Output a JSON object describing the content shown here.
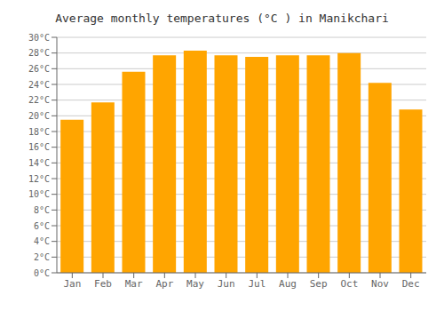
{
  "chart_data": {
    "type": "bar",
    "title": "Average monthly temperatures (°C ) in Manikchari",
    "categories": [
      "Jan",
      "Feb",
      "Mar",
      "Apr",
      "May",
      "Jun",
      "Jul",
      "Aug",
      "Sep",
      "Oct",
      "Nov",
      "Dec"
    ],
    "values": [
      19.5,
      21.7,
      25.6,
      27.7,
      28.3,
      27.7,
      27.5,
      27.7,
      27.7,
      28.0,
      24.2,
      20.8
    ],
    "color": "#FFA500",
    "ylim": [
      0,
      30
    ],
    "yticks": [
      {
        "value": 0,
        "label": "0°C"
      },
      {
        "value": 2,
        "label": "2°C"
      },
      {
        "value": 4,
        "label": "4°C"
      },
      {
        "value": 6,
        "label": "6°C"
      },
      {
        "value": 8,
        "label": "8°C"
      },
      {
        "value": 10,
        "label": "10°C"
      },
      {
        "value": 12,
        "label": "12°C"
      },
      {
        "value": 14,
        "label": "14°C"
      },
      {
        "value": 16,
        "label": "16°C"
      },
      {
        "value": 18,
        "label": "18°C"
      },
      {
        "value": 20,
        "label": "20°C"
      },
      {
        "value": 22,
        "label": "22°C"
      },
      {
        "value": 24,
        "label": "24°C"
      },
      {
        "value": 26,
        "label": "26°C"
      },
      {
        "value": 28,
        "label": "28°C"
      },
      {
        "value": 30,
        "label": "30°C"
      }
    ],
    "grid": true
  }
}
